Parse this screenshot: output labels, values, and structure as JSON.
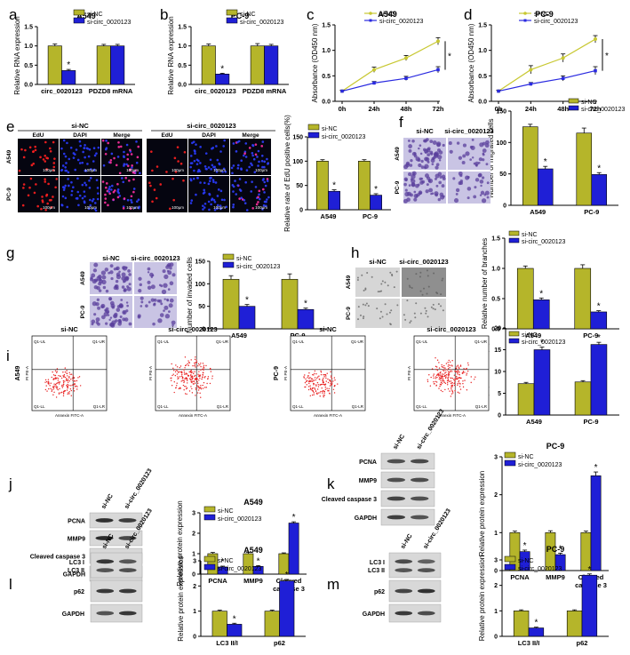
{
  "colors": {
    "nc": "#b5b52a",
    "si": "#1f1fd6",
    "nc_line": "#c8c832",
    "si_line": "#2a2ae0"
  },
  "legend": {
    "nc": "si-NC",
    "si": "si-circ_0020123"
  },
  "sig_mark": "*",
  "panel_letters": {
    "a": "a",
    "b": "b",
    "c": "c",
    "d": "d",
    "e": "e",
    "f": "f",
    "g": "g",
    "h": "h",
    "i": "i",
    "j": "j",
    "k": "k",
    "l": "l",
    "m": "m"
  },
  "micro": {
    "e": {
      "group1": "si-NC",
      "group2": "si-circ_0020123",
      "cols": [
        "EdU",
        "DAPI",
        "Merge",
        "EdU",
        "DAPI",
        "Merge"
      ],
      "rows": [
        "A549",
        "PC-9"
      ],
      "scale": "100μm"
    },
    "f": {
      "cols": [
        "si-NC",
        "si-circ_0020123"
      ],
      "rows": [
        "A549",
        "PC-9"
      ]
    },
    "g": {
      "cols": [
        "si-NC",
        "si-circ_0020123"
      ],
      "rows": [
        "A549",
        "PC-9"
      ]
    },
    "h": {
      "cols": [
        "si-NC",
        "si-circ_0020123"
      ],
      "rows": [
        "A549",
        "PC-9"
      ]
    },
    "i": {
      "heads": [
        "si-NC",
        "si-circ_0020123",
        "si-NC",
        "si-circ_0020123"
      ],
      "rows": [
        "A549",
        "PC-9"
      ],
      "quad": [
        "Q1-UL",
        "Q1-UR",
        "Q1-LL",
        "Q1-LR"
      ],
      "xaxis": "Annexin FITC-A",
      "yaxis": "PI PE-A"
    }
  },
  "blots": {
    "j": {
      "lanes": [
        "si-NC",
        "si-circ_0020123"
      ],
      "rows": [
        "PCNA",
        "MMP9",
        "Cleaved caspase 3",
        "GAPDH"
      ]
    },
    "k": {
      "lanes": [
        "si-NC",
        "si-circ_0020123"
      ],
      "rows": [
        "PCNA",
        "MMP9",
        "Cleaved caspase 3",
        "GAPDH"
      ]
    },
    "l": {
      "lanes": [
        "si-NC",
        "si-circ_0020123"
      ],
      "rows": [
        "LC3 I\nLC3 II",
        "p62",
        "GAPDH"
      ]
    },
    "m": {
      "lanes": [
        "si-NC",
        "si-circ_0020123"
      ],
      "rows": [
        "LC3 I\nLC3 II",
        "p62",
        "GAPDH"
      ]
    }
  },
  "chart_data": [
    {
      "id": "a",
      "type": "bar",
      "title": "A549",
      "ylabel": "Relative RNA expression",
      "ylim": [
        0,
        1.5
      ],
      "yticks": [
        0.0,
        0.5,
        1.0,
        1.5
      ],
      "categories": [
        "circ_0020123",
        "PDZD8 mRNA"
      ],
      "series": [
        {
          "name": "si-NC",
          "values": [
            1.0,
            1.0
          ],
          "err": [
            0.05,
            0.04
          ]
        },
        {
          "name": "si-circ_0020123",
          "values": [
            0.36,
            1.0
          ],
          "err": [
            0.03,
            0.04
          ]
        }
      ],
      "sig": [
        true,
        false
      ]
    },
    {
      "id": "b",
      "type": "bar",
      "title": "PC-9",
      "ylabel": "Relative RNA expression",
      "ylim": [
        0,
        1.5
      ],
      "yticks": [
        0.0,
        0.5,
        1.0,
        1.5
      ],
      "categories": [
        "circ_0020123",
        "PDZD8 mRNA"
      ],
      "series": [
        {
          "name": "si-NC",
          "values": [
            1.0,
            1.0
          ],
          "err": [
            0.05,
            0.06
          ]
        },
        {
          "name": "si-circ_0020123",
          "values": [
            0.27,
            1.0
          ],
          "err": [
            0.02,
            0.04
          ]
        }
      ],
      "sig": [
        true,
        false
      ]
    },
    {
      "id": "c",
      "type": "line",
      "title": "A549",
      "ylabel": "Absorbance (OD450 nm)",
      "ylim": [
        0,
        1.5
      ],
      "yticks": [
        0.0,
        0.5,
        1.0,
        1.5
      ],
      "x": [
        "0h",
        "24h",
        "48h",
        "72h"
      ],
      "series": [
        {
          "name": "si-NC",
          "values": [
            0.2,
            0.62,
            0.85,
            1.18
          ],
          "err": [
            0.02,
            0.05,
            0.05,
            0.07
          ]
        },
        {
          "name": "si-circ_0020123",
          "values": [
            0.2,
            0.36,
            0.45,
            0.62
          ],
          "err": [
            0.02,
            0.03,
            0.04,
            0.06
          ]
        }
      ],
      "sig": true
    },
    {
      "id": "d",
      "type": "line",
      "title": "PC-9",
      "ylabel": "Absorbance (OD450 nm)",
      "ylim": [
        0,
        1.5
      ],
      "yticks": [
        0.0,
        0.5,
        1.0,
        1.5
      ],
      "x": [
        "0h",
        "24h",
        "48h",
        "72h"
      ],
      "series": [
        {
          "name": "si-NC",
          "values": [
            0.2,
            0.62,
            0.85,
            1.22
          ],
          "err": [
            0.02,
            0.08,
            0.08,
            0.07
          ]
        },
        {
          "name": "si-circ_0020123",
          "values": [
            0.2,
            0.34,
            0.45,
            0.6
          ],
          "err": [
            0.02,
            0.03,
            0.05,
            0.08
          ]
        }
      ],
      "sig": true
    },
    {
      "id": "e",
      "type": "bar",
      "title": "",
      "ylabel": "Relative rate of EdU positive cells(%)",
      "ylim": [
        0,
        150
      ],
      "yticks": [
        0,
        50,
        100,
        150
      ],
      "categories": [
        "A549",
        "PC-9"
      ],
      "series": [
        {
          "name": "si-NC",
          "values": [
            100,
            100
          ],
          "err": [
            3,
            3
          ]
        },
        {
          "name": "si-circ_0020123",
          "values": [
            38,
            30
          ],
          "err": [
            3,
            3
          ]
        }
      ],
      "sig": [
        true,
        true
      ]
    },
    {
      "id": "f",
      "type": "bar",
      "title": "",
      "ylabel": "Number of migrated cells",
      "ylim": [
        0,
        150
      ],
      "yticks": [
        0,
        50,
        100,
        150
      ],
      "categories": [
        "A549",
        "PC-9"
      ],
      "series": [
        {
          "name": "si-NC",
          "values": [
            125,
            115
          ],
          "err": [
            4,
            8
          ]
        },
        {
          "name": "si-circ_0020123",
          "values": [
            58,
            49
          ],
          "err": [
            4,
            3
          ]
        }
      ],
      "sig": [
        true,
        true
      ]
    },
    {
      "id": "g",
      "type": "bar",
      "title": "",
      "ylabel": "Number of invaded cells",
      "ylim": [
        0,
        150
      ],
      "yticks": [
        0,
        50,
        100,
        150
      ],
      "categories": [
        "A549",
        "PC-9"
      ],
      "series": [
        {
          "name": "si-NC",
          "values": [
            110,
            110
          ],
          "err": [
            8,
            12
          ]
        },
        {
          "name": "si-circ_0020123",
          "values": [
            50,
            43
          ],
          "err": [
            4,
            3
          ]
        }
      ],
      "sig": [
        true,
        true
      ]
    },
    {
      "id": "h",
      "type": "bar",
      "title": "",
      "ylabel": "Relative number of branches",
      "ylim": [
        0,
        1.5
      ],
      "yticks": [
        0.0,
        0.5,
        1.0,
        1.5
      ],
      "categories": [
        "A549",
        "PC-9"
      ],
      "series": [
        {
          "name": "si-NC",
          "values": [
            1.0,
            1.0
          ],
          "err": [
            0.04,
            0.06
          ]
        },
        {
          "name": "si-circ_0020123",
          "values": [
            0.48,
            0.28
          ],
          "err": [
            0.03,
            0.02
          ]
        }
      ],
      "sig": [
        true,
        true
      ]
    },
    {
      "id": "i",
      "type": "bar",
      "title": "",
      "ylabel": "Apoptosis rate (%)",
      "ylim": [
        0,
        20
      ],
      "yticks": [
        0,
        5,
        10,
        15,
        20
      ],
      "categories": [
        "A549",
        "PC-9"
      ],
      "series": [
        {
          "name": "si-NC",
          "values": [
            7.2,
            7.6
          ],
          "err": [
            0.3,
            0.3
          ]
        },
        {
          "name": "si-circ_0020123",
          "values": [
            15,
            16.2
          ],
          "err": [
            0.6,
            0.5
          ]
        }
      ],
      "sig": [
        true,
        true
      ]
    },
    {
      "id": "j",
      "type": "bar",
      "title": "A549",
      "ylabel": "Relative protein expression",
      "ylim": [
        0,
        3
      ],
      "yticks": [
        0,
        1,
        2,
        3
      ],
      "categories": [
        "PCNA",
        "MMP9",
        "Cleaved\ncaspase 3"
      ],
      "series": [
        {
          "name": "si-NC",
          "values": [
            1.0,
            1.0,
            1.0
          ],
          "err": [
            0.06,
            0.06,
            0.04
          ]
        },
        {
          "name": "si-circ_0020123",
          "values": [
            0.35,
            0.38,
            2.5
          ],
          "err": [
            0.04,
            0.04,
            0.06
          ]
        }
      ],
      "sig": [
        true,
        true,
        true
      ]
    },
    {
      "id": "k",
      "type": "bar",
      "title": "PC-9",
      "ylabel": "Relative protein expression",
      "ylim": [
        0,
        3
      ],
      "yticks": [
        0,
        1,
        2,
        3
      ],
      "categories": [
        "PCNA",
        "MMP9",
        "Cleaved\ncaspase 3"
      ],
      "series": [
        {
          "name": "si-NC",
          "values": [
            1.0,
            1.0,
            1.0
          ],
          "err": [
            0.04,
            0.05,
            0.04
          ]
        },
        {
          "name": "si-circ_0020123",
          "values": [
            0.5,
            0.42,
            2.5
          ],
          "err": [
            0.04,
            0.04,
            0.1
          ]
        }
      ],
      "sig": [
        true,
        true,
        true
      ]
    },
    {
      "id": "l",
      "type": "bar",
      "title": "A549",
      "ylabel": "Relative protein expression",
      "ylim": [
        0,
        3
      ],
      "yticks": [
        0,
        1,
        2,
        3
      ],
      "categories": [
        "LC3 II/I",
        "p62"
      ],
      "series": [
        {
          "name": "si-NC",
          "values": [
            1.0,
            1.0
          ],
          "err": [
            0.04,
            0.04
          ]
        },
        {
          "name": "si-circ_0020123",
          "values": [
            0.48,
            2.2
          ],
          "err": [
            0.04,
            0.06
          ]
        }
      ],
      "sig": [
        true,
        true
      ]
    },
    {
      "id": "m",
      "type": "bar",
      "title": "PC-9",
      "ylabel": "Relative protein expression",
      "ylim": [
        0,
        3
      ],
      "yticks": [
        0,
        1,
        2,
        3
      ],
      "categories": [
        "LC3 II/I",
        "p62"
      ],
      "series": [
        {
          "name": "si-NC",
          "values": [
            1.0,
            1.0
          ],
          "err": [
            0.04,
            0.04
          ]
        },
        {
          "name": "si-circ_0020123",
          "values": [
            0.33,
            2.4
          ],
          "err": [
            0.03,
            0.05
          ]
        }
      ],
      "sig": [
        true,
        true
      ]
    }
  ]
}
